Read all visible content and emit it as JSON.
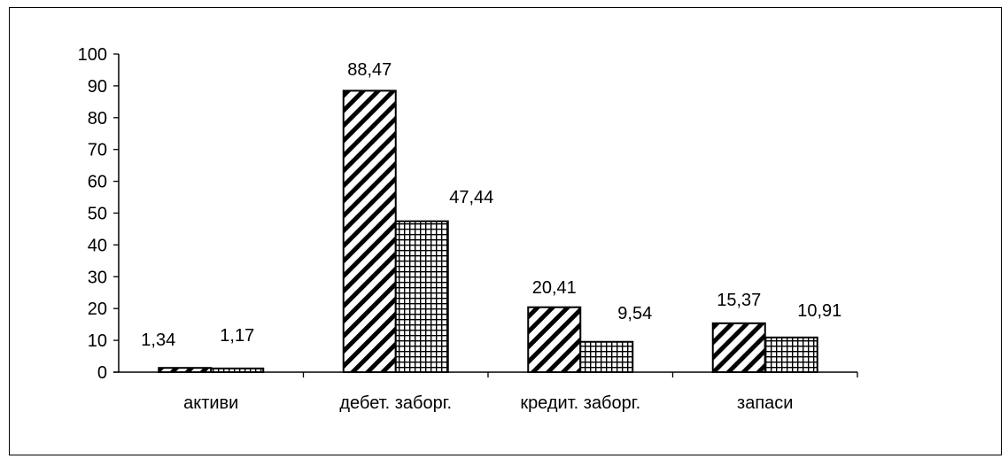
{
  "chart_data": {
    "type": "bar",
    "categories": [
      "активи",
      "дебет. заборг.",
      "кредит. заборг.",
      "запаси"
    ],
    "series": [
      {
        "values": [
          1.34,
          88.47,
          20.41,
          15.37
        ],
        "labels": [
          "1,34",
          "88,47",
          "20,41",
          "15,37"
        ],
        "pattern": "diagonal-hatch"
      },
      {
        "values": [
          1.17,
          47.44,
          9.54,
          10.91
        ],
        "labels": [
          "1,17",
          "47,44",
          "9,54",
          "10,91"
        ],
        "pattern": "grid-hatch"
      }
    ],
    "yticks": [
      "0",
      "10",
      "20",
      "30",
      "40",
      "50",
      "60",
      "70",
      "80",
      "90",
      "100"
    ],
    "ylim": [
      0,
      100
    ],
    "grid": false,
    "legend": "none",
    "colors": {
      "stroke": "#000000",
      "fill": "#ffffff"
    }
  }
}
